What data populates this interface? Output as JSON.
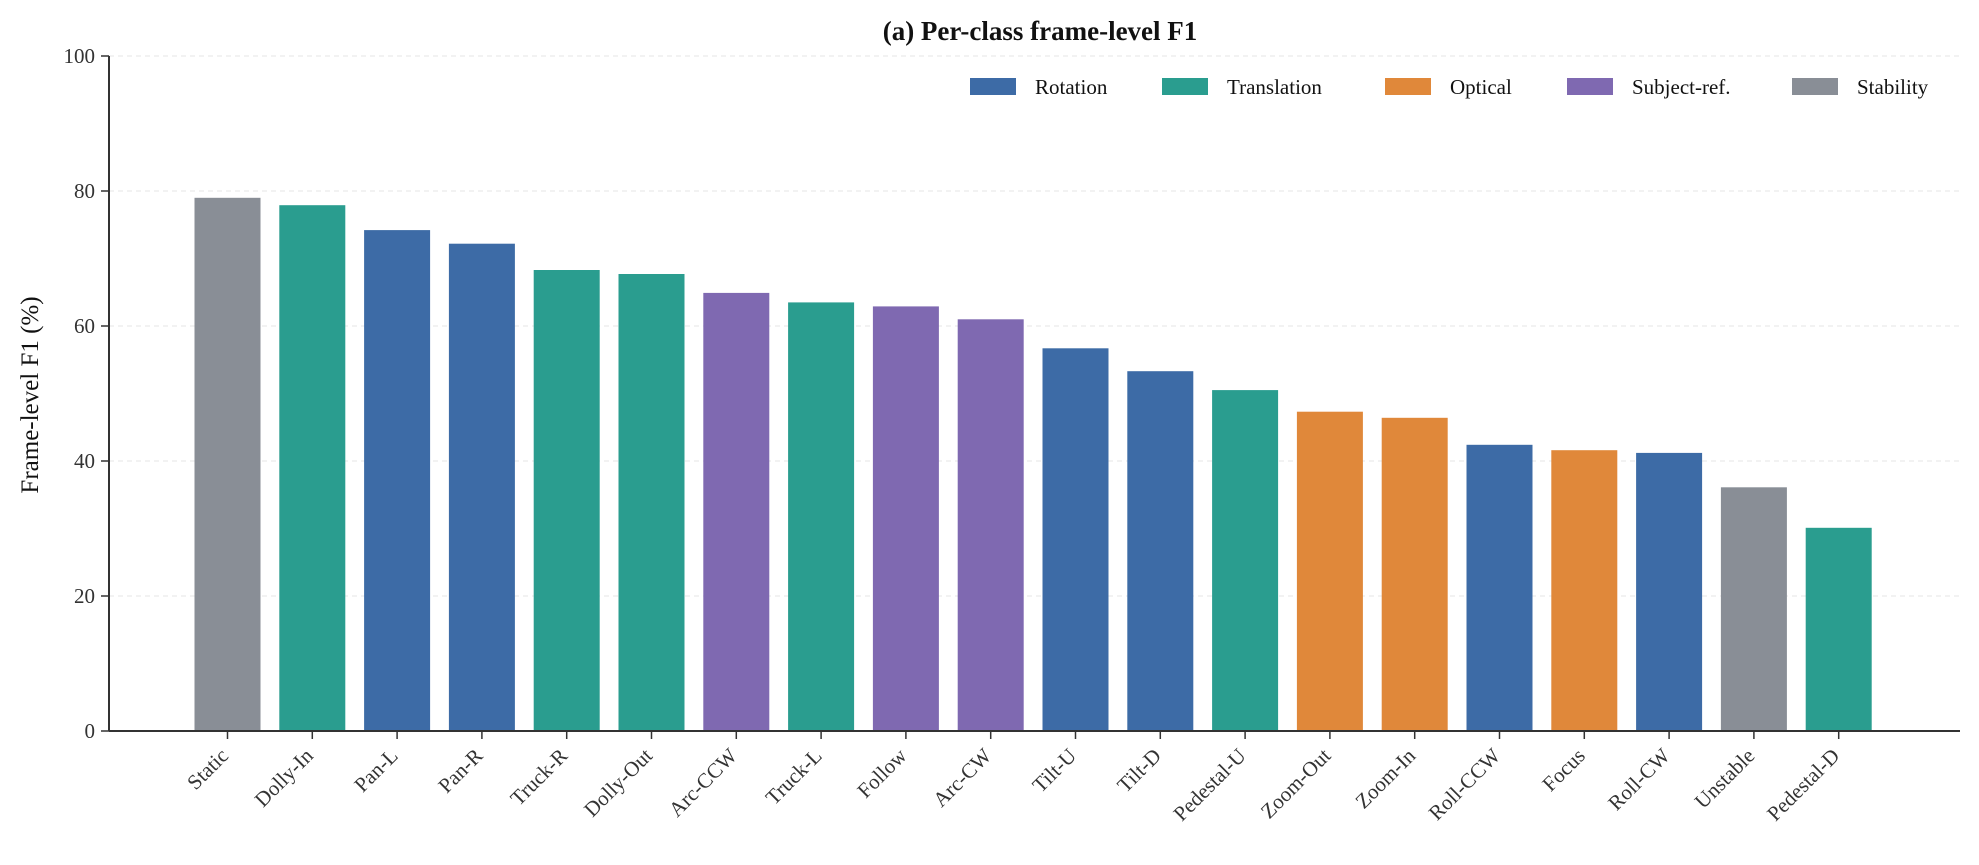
{
  "chart_data": {
    "type": "bar",
    "title": "(a) Per-class frame-level F1",
    "xlabel": "",
    "ylabel": "Frame-level F1 (%)",
    "ylim": [
      0,
      100
    ],
    "yticks": [
      0,
      20,
      40,
      60,
      80,
      100
    ],
    "grid": "horizontal dashed, light",
    "legend_position": "top-right",
    "categories": [
      "Static",
      "Dolly-In",
      "Pan-L",
      "Pan-R",
      "Truck-R",
      "Dolly-Out",
      "Arc-CCW",
      "Truck-L",
      "Follow",
      "Arc-CW",
      "Tilt-U",
      "Tilt-D",
      "Pedestal-U",
      "Zoom-Out",
      "Zoom-In",
      "Roll-CCW",
      "Focus",
      "Roll-CW",
      "Unstable",
      "Pedestal-D"
    ],
    "values": [
      79.0,
      77.9,
      74.2,
      72.2,
      68.3,
      67.7,
      64.9,
      63.5,
      62.9,
      61.0,
      56.7,
      53.3,
      50.5,
      47.3,
      46.4,
      42.4,
      41.6,
      41.2,
      36.1,
      30.1
    ],
    "groups": [
      "Stability",
      "Translation",
      "Rotation",
      "Rotation",
      "Translation",
      "Translation",
      "Subject-ref.",
      "Translation",
      "Subject-ref.",
      "Subject-ref.",
      "Rotation",
      "Rotation",
      "Translation",
      "Optical",
      "Optical",
      "Rotation",
      "Optical",
      "Rotation",
      "Stability",
      "Translation"
    ],
    "legend": [
      {
        "name": "Rotation",
        "color": "#3d6ba6"
      },
      {
        "name": "Translation",
        "color": "#2a9d8f"
      },
      {
        "name": "Optical",
        "color": "#e0883a"
      },
      {
        "name": "Subject-ref.",
        "color": "#7f69b1"
      },
      {
        "name": "Stability",
        "color": "#898e96"
      }
    ]
  }
}
